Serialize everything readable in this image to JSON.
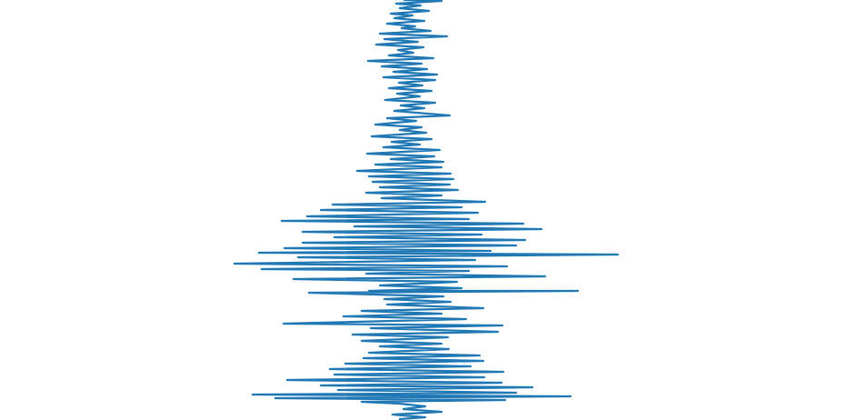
{
  "chart_data": {
    "type": "line",
    "orientation": "vertical",
    "title": "",
    "xlabel": "",
    "ylabel": "",
    "axes_visible": false,
    "grid": false,
    "legend": "none",
    "xlim": [
      -220,
      220
    ],
    "ylim": [
      0,
      462
    ],
    "color": "#1f77b4",
    "series": [
      {
        "points": [
          [
            -3,
            0
          ],
          [
            38,
            1
          ],
          [
            -12,
            4
          ],
          [
            15,
            6
          ],
          [
            -8,
            9
          ],
          [
            24,
            12
          ],
          [
            -18,
            15
          ],
          [
            6,
            17
          ],
          [
            -14,
            20
          ],
          [
            19,
            23
          ],
          [
            -22,
            26
          ],
          [
            9,
            29
          ],
          [
            -6,
            31
          ],
          [
            26,
            34
          ],
          [
            -30,
            37
          ],
          [
            44,
            40
          ],
          [
            -25,
            43
          ],
          [
            12,
            46
          ],
          [
            -34,
            49
          ],
          [
            18,
            52
          ],
          [
            -10,
            55
          ],
          [
            7,
            58
          ],
          [
            -20,
            61
          ],
          [
            29,
            64
          ],
          [
            -43,
            67
          ],
          [
            16,
            70
          ],
          [
            -28,
            73
          ],
          [
            22,
            76
          ],
          [
            -15,
            79
          ],
          [
            33,
            82
          ],
          [
            -26,
            85
          ],
          [
            31,
            88
          ],
          [
            -9,
            91
          ],
          [
            17,
            94
          ],
          [
            -20,
            97
          ],
          [
            27,
            100
          ],
          [
            -11,
            103
          ],
          [
            14,
            106
          ],
          [
            -24,
            110
          ],
          [
            31,
            113
          ],
          [
            -7,
            116
          ],
          [
            19,
            119
          ],
          [
            -14,
            122
          ],
          [
            47,
            127
          ],
          [
            -22,
            130
          ],
          [
            10,
            133
          ],
          [
            -35,
            137
          ],
          [
            16,
            140
          ],
          [
            -8,
            143
          ],
          [
            21,
            146
          ],
          [
            -39,
            150
          ],
          [
            27,
            153
          ],
          [
            -17,
            156
          ],
          [
            14,
            159
          ],
          [
            -26,
            162
          ],
          [
            36,
            165
          ],
          [
            -44,
            169
          ],
          [
            30,
            172
          ],
          [
            -18,
            175
          ],
          [
            40,
            178
          ],
          [
            -35,
            181
          ],
          [
            38,
            184
          ],
          [
            -55,
            188
          ],
          [
            48,
            191
          ],
          [
            -42,
            194
          ],
          [
            51,
            197
          ],
          [
            -38,
            200
          ],
          [
            47,
            203
          ],
          [
            -30,
            206
          ],
          [
            56,
            209
          ],
          [
            -45,
            212
          ],
          [
            38,
            215
          ],
          [
            -28,
            218
          ],
          [
            86,
            222
          ],
          [
            -82,
            225
          ],
          [
            60,
            228
          ],
          [
            -95,
            231
          ],
          [
            78,
            234
          ],
          [
            -110,
            238
          ],
          [
            68,
            241
          ],
          [
            -138,
            243
          ],
          [
            128,
            246
          ],
          [
            -58,
            249
          ],
          [
            148,
            252
          ],
          [
            -115,
            255
          ],
          [
            82,
            258
          ],
          [
            -80,
            261
          ],
          [
            130,
            264
          ],
          [
            -115,
            267
          ],
          [
            120,
            270
          ],
          [
            -135,
            273
          ],
          [
            92,
            276
          ],
          [
            -163,
            278
          ],
          [
            232,
            280
          ],
          [
            -120,
            283
          ],
          [
            75,
            286
          ],
          [
            -190,
            290
          ],
          [
            110,
            293
          ],
          [
            -160,
            296
          ],
          [
            68,
            298
          ],
          [
            -45,
            301
          ],
          [
            152,
            304
          ],
          [
            -125,
            307
          ],
          [
            55,
            310
          ],
          [
            -30,
            314
          ],
          [
            60,
            317
          ],
          [
            -42,
            320
          ],
          [
            188,
            320
          ],
          [
            -108,
            322
          ],
          [
            40,
            326
          ],
          [
            -25,
            329
          ],
          [
            48,
            332
          ],
          [
            -22,
            335
          ],
          [
            84,
            339
          ],
          [
            -50,
            342
          ],
          [
            38,
            345
          ],
          [
            -70,
            348
          ],
          [
            65,
            351
          ],
          [
            -136,
            356
          ],
          [
            105,
            358
          ],
          [
            -40,
            361
          ],
          [
            100,
            365
          ],
          [
            -60,
            368
          ],
          [
            45,
            371
          ],
          [
            -50,
            375
          ],
          [
            38,
            378
          ],
          [
            -30,
            381
          ],
          [
            46,
            384
          ],
          [
            -42,
            388
          ],
          [
            80,
            391
          ],
          [
            -48,
            394
          ],
          [
            84,
            397
          ],
          [
            -68,
            400
          ],
          [
            70,
            403
          ],
          [
            -85,
            406
          ],
          [
            106,
            409
          ],
          [
            -80,
            412
          ],
          [
            85,
            415
          ],
          [
            -132,
            418
          ],
          [
            104,
            421
          ],
          [
            -95,
            424
          ],
          [
            138,
            426
          ],
          [
            -76,
            429
          ],
          [
            120,
            432
          ],
          [
            -170,
            434
          ],
          [
            180,
            436
          ],
          [
            -145,
            438
          ],
          [
            108,
            440
          ],
          [
            -50,
            442
          ],
          [
            -8,
            444
          ],
          [
            20,
            447
          ],
          [
            -4,
            450
          ],
          [
            38,
            453
          ],
          [
            -16,
            456
          ],
          [
            20,
            459
          ],
          [
            -8,
            461
          ]
        ]
      }
    ]
  }
}
